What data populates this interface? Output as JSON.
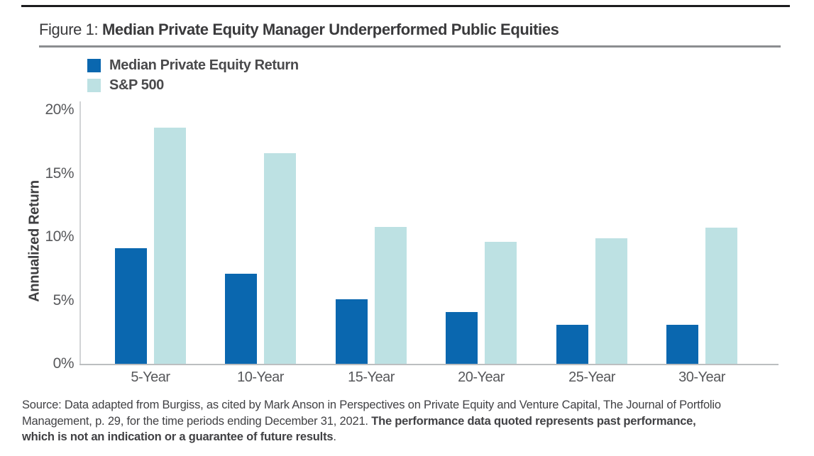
{
  "figure": {
    "label": "Figure 1:",
    "title": "Median Private Equity Manager Underperformed Public Equities"
  },
  "chart_data": {
    "type": "bar",
    "categories": [
      "5-Year",
      "10-Year",
      "15-Year",
      "20-Year",
      "25-Year",
      "30-Year"
    ],
    "series": [
      {
        "name": "Median Private Equity Return",
        "color": "#0a67af",
        "values": [
          9.1,
          7.1,
          5.1,
          4.1,
          3.1,
          3.1
        ]
      },
      {
        "name": "S&P 500",
        "color": "#bde1e3",
        "values": [
          18.6,
          16.6,
          10.8,
          9.6,
          9.9,
          10.7
        ]
      }
    ],
    "title": "Median Private Equity Manager Underperformed Public Equities",
    "xlabel": "",
    "ylabel": "Annualized Return",
    "ylim": [
      0,
      20
    ],
    "yticks": [
      {
        "value": 0,
        "label": "0%"
      },
      {
        "value": 5,
        "label": "5%"
      },
      {
        "value": 10,
        "label": "10%"
      },
      {
        "value": 15,
        "label": "15%"
      },
      {
        "value": 20,
        "label": "20%"
      }
    ],
    "grid": false,
    "legend_position": "top-left"
  },
  "footer": {
    "lines": [
      {
        "segments": [
          {
            "text": "Source: Data adapted from Burgiss, as cited by Mark Anson in Perspectives on Private Equity and Venture Capital, The Journal of Portfolio",
            "bold": false
          }
        ]
      },
      {
        "segments": [
          {
            "text": "Management, p. 29, for the time periods ending December 31, 2021. ",
            "bold": false
          },
          {
            "text": "The performance data quoted represents past performance,",
            "bold": true
          }
        ]
      },
      {
        "segments": [
          {
            "text": "which is not an indication or a guarantee of future results",
            "bold": true
          },
          {
            "text": ".",
            "bold": false
          }
        ]
      }
    ]
  }
}
